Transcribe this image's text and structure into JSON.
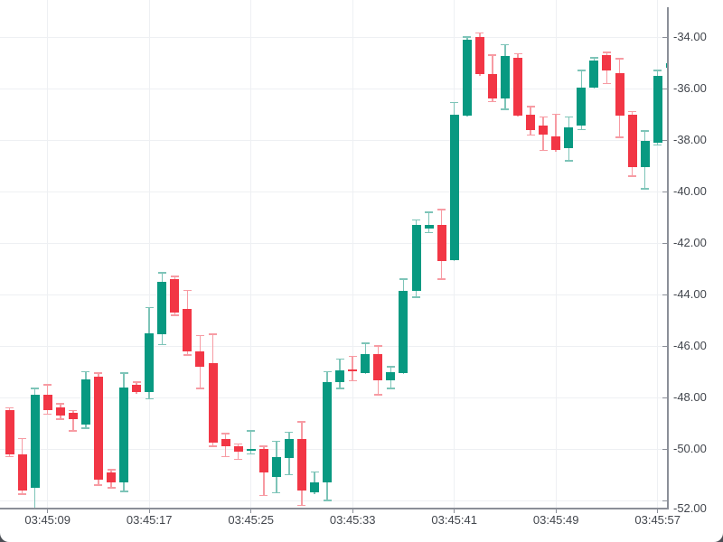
{
  "window": {
    "background": "#ffffff",
    "backdrop": "#4b4e55"
  },
  "chart_data": {
    "type": "candlestick",
    "title": "",
    "legend": false,
    "grid": true,
    "x_axis": {
      "ticks": [
        "03:45:09",
        "03:45:17",
        "03:45:25",
        "03:45:33",
        "03:45:41",
        "03:45:49",
        "03:45:57"
      ],
      "interval_seconds": 1,
      "tick_interval_seconds": 8
    },
    "y_axis": {
      "side": "right",
      "tick_values": [
        -34,
        -36,
        -38,
        -40,
        -42,
        -44,
        -46,
        -48,
        -50,
        -52
      ],
      "tick_labels": [
        "-34.00",
        "-36.00",
        "-38.00",
        "-40.00",
        "-42.00",
        "-44.00",
        "-46.00",
        "-48.00",
        "-50.00",
        "-52.00"
      ],
      "visible_range": [
        -52.3,
        -32.56
      ]
    },
    "colors": {
      "up": "#089981",
      "down": "#f23645",
      "up_wick": "#7dc4b8",
      "down_wick": "#f79ba3",
      "grid": "#eef0f3",
      "axis": "#8b8f98",
      "text": "#42464d"
    },
    "candles": [
      {
        "time": "03:45:06",
        "open": -48.5,
        "high": -48.4,
        "low": -50.3,
        "close": -50.2
      },
      {
        "time": "03:45:07",
        "open": -50.2,
        "high": -49.6,
        "low": -51.75,
        "close": -51.6
      },
      {
        "time": "03:45:08",
        "open": -51.5,
        "high": -47.65,
        "low": -52.3,
        "close": -47.9
      },
      {
        "time": "03:45:09",
        "open": -47.9,
        "high": -47.5,
        "low": -48.65,
        "close": -48.5
      },
      {
        "time": "03:45:10",
        "open": -48.4,
        "high": -48.25,
        "low": -48.85,
        "close": -48.7
      },
      {
        "time": "03:45:11",
        "open": -48.6,
        "high": -48.5,
        "low": -49.3,
        "close": -48.85
      },
      {
        "time": "03:45:12",
        "open": -49.05,
        "high": -47.0,
        "low": -49.2,
        "close": -47.3
      },
      {
        "time": "03:45:13",
        "open": -47.2,
        "high": -47.05,
        "low": -51.4,
        "close": -51.2
      },
      {
        "time": "03:45:14",
        "open": -50.9,
        "high": -50.8,
        "low": -51.5,
        "close": -51.3
      },
      {
        "time": "03:45:15",
        "open": -51.3,
        "high": -47.05,
        "low": -51.65,
        "close": -47.6
      },
      {
        "time": "03:45:16",
        "open": -47.5,
        "high": -47.4,
        "low": -47.85,
        "close": -47.8
      },
      {
        "time": "03:45:17",
        "open": -47.8,
        "high": -44.5,
        "low": -48.05,
        "close": -45.5
      },
      {
        "time": "03:45:18",
        "open": -45.55,
        "high": -43.15,
        "low": -45.95,
        "close": -43.5
      },
      {
        "time": "03:45:19",
        "open": -43.4,
        "high": -43.3,
        "low": -44.8,
        "close": -44.7
      },
      {
        "time": "03:45:20",
        "open": -44.55,
        "high": -43.85,
        "low": -46.35,
        "close": -46.2
      },
      {
        "time": "03:45:21",
        "open": -46.2,
        "high": -45.6,
        "low": -47.65,
        "close": -46.8
      },
      {
        "time": "03:45:22",
        "open": -46.65,
        "high": -45.55,
        "low": -49.9,
        "close": -49.75
      },
      {
        "time": "03:45:23",
        "open": -49.6,
        "high": -49.4,
        "low": -50.3,
        "close": -49.9
      },
      {
        "time": "03:45:24",
        "open": -49.9,
        "high": -49.8,
        "low": -50.4,
        "close": -50.1
      },
      {
        "time": "03:45:25",
        "open": -50.05,
        "high": -49.3,
        "low": -50.2,
        "close": -50.0
      },
      {
        "time": "03:45:26",
        "open": -50.0,
        "high": -49.9,
        "low": -51.8,
        "close": -50.9
      },
      {
        "time": "03:45:27",
        "open": -51.1,
        "high": -49.7,
        "low": -51.7,
        "close": -50.3
      },
      {
        "time": "03:45:28",
        "open": -50.35,
        "high": -49.35,
        "low": -51.0,
        "close": -49.6
      },
      {
        "time": "03:45:29",
        "open": -49.6,
        "high": -48.95,
        "low": -52.2,
        "close": -51.6
      },
      {
        "time": "03:45:30",
        "open": -51.7,
        "high": -50.9,
        "low": -51.75,
        "close": -51.3
      },
      {
        "time": "03:45:31",
        "open": -51.3,
        "high": -47.0,
        "low": -52.0,
        "close": -47.4
      },
      {
        "time": "03:45:32",
        "open": -47.4,
        "high": -46.5,
        "low": -47.65,
        "close": -46.95
      },
      {
        "time": "03:45:33",
        "open": -46.9,
        "high": -46.4,
        "low": -47.35,
        "close": -47.0
      },
      {
        "time": "03:45:34",
        "open": -47.05,
        "high": -45.9,
        "low": -47.1,
        "close": -46.3
      },
      {
        "time": "03:45:35",
        "open": -46.3,
        "high": -46.0,
        "low": -47.9,
        "close": -47.35
      },
      {
        "time": "03:45:36",
        "open": -47.35,
        "high": -46.8,
        "low": -47.65,
        "close": -47.0
      },
      {
        "time": "03:45:37",
        "open": -47.05,
        "high": -43.4,
        "low": -47.1,
        "close": -43.85
      },
      {
        "time": "03:45:38",
        "open": -43.85,
        "high": -41.1,
        "low": -44.1,
        "close": -41.3
      },
      {
        "time": "03:45:39",
        "open": -41.45,
        "high": -40.8,
        "low": -41.6,
        "close": -41.3
      },
      {
        "time": "03:45:40",
        "open": -41.3,
        "high": -40.7,
        "low": -43.4,
        "close": -42.7
      },
      {
        "time": "03:45:41",
        "open": -42.65,
        "high": -36.55,
        "low": -42.7,
        "close": -37.0
      },
      {
        "time": "03:45:42",
        "open": -37.05,
        "high": -34.0,
        "low": -37.1,
        "close": -34.1
      },
      {
        "time": "03:45:43",
        "open": -34.0,
        "high": -33.85,
        "low": -35.5,
        "close": -35.45
      },
      {
        "time": "03:45:44",
        "open": -35.45,
        "high": -34.7,
        "low": -36.5,
        "close": -36.4
      },
      {
        "time": "03:45:45",
        "open": -36.4,
        "high": -34.3,
        "low": -36.8,
        "close": -34.75
      },
      {
        "time": "03:45:46",
        "open": -34.8,
        "high": -34.65,
        "low": -37.1,
        "close": -37.05
      },
      {
        "time": "03:45:47",
        "open": -37.0,
        "high": -36.7,
        "low": -37.8,
        "close": -37.6
      },
      {
        "time": "03:45:48",
        "open": -37.45,
        "high": -37.1,
        "low": -38.4,
        "close": -37.8
      },
      {
        "time": "03:45:49",
        "open": -37.85,
        "high": -37.0,
        "low": -38.45,
        "close": -38.4
      },
      {
        "time": "03:45:50",
        "open": -38.3,
        "high": -37.1,
        "low": -38.8,
        "close": -37.5
      },
      {
        "time": "03:45:51",
        "open": -37.45,
        "high": -35.3,
        "low": -37.6,
        "close": -35.95
      },
      {
        "time": "03:45:52",
        "open": -35.95,
        "high": -34.8,
        "low": -36.0,
        "close": -34.9
      },
      {
        "time": "03:45:53",
        "open": -34.7,
        "high": -34.6,
        "low": -35.8,
        "close": -35.3
      },
      {
        "time": "03:45:54",
        "open": -35.4,
        "high": -34.85,
        "low": -37.9,
        "close": -37.05
      },
      {
        "time": "03:45:55",
        "open": -37.0,
        "high": -36.9,
        "low": -39.4,
        "close": -39.05
      },
      {
        "time": "03:45:56",
        "open": -39.05,
        "high": -37.65,
        "low": -39.9,
        "close": -38.05
      },
      {
        "time": "03:45:57",
        "open": -38.1,
        "high": -35.3,
        "low": -38.2,
        "close": -35.5
      },
      {
        "time": "03:45:58",
        "open": -35.2,
        "high": -35.0,
        "low": -35.2,
        "close": -35.0
      }
    ]
  }
}
